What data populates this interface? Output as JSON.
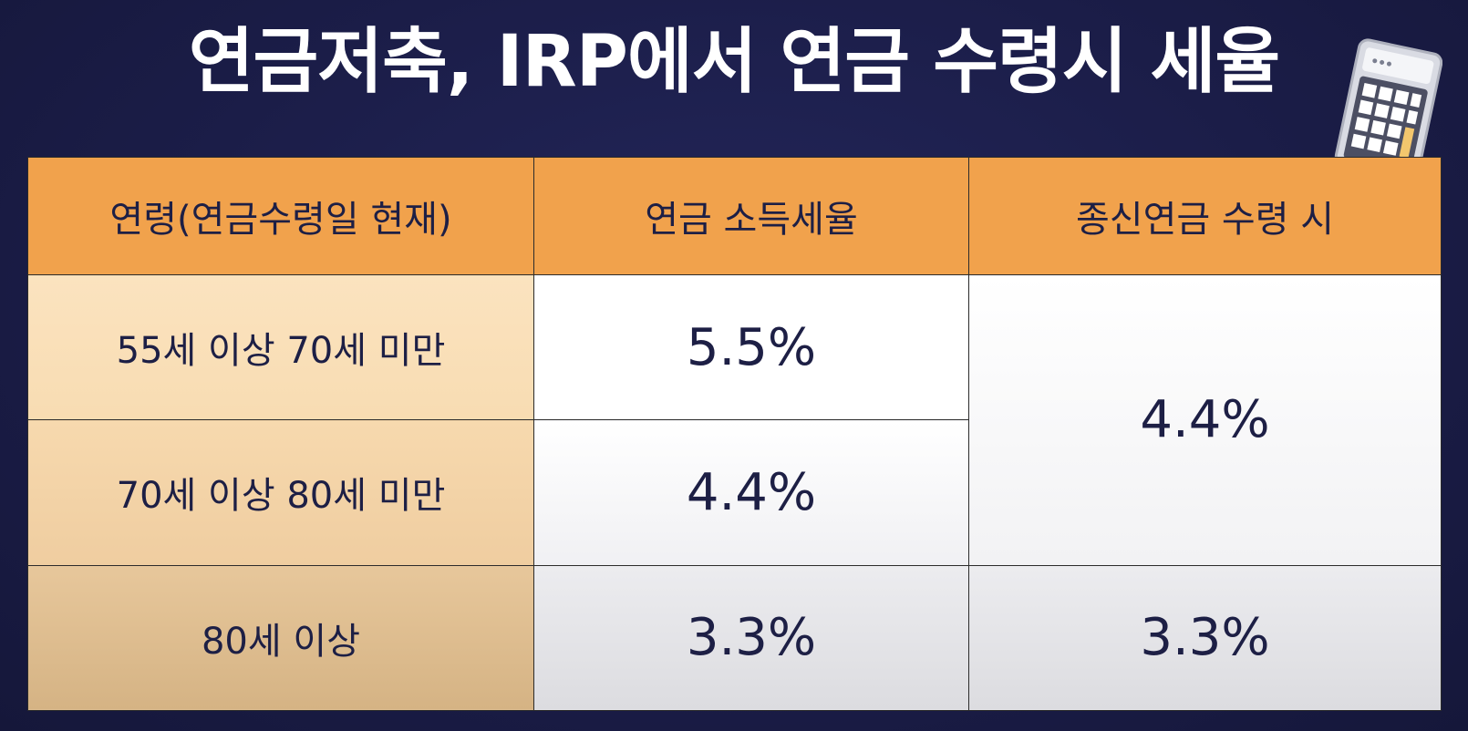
{
  "title": "연금저축, IRP에서 연금 수령시 세율",
  "table": {
    "headers": [
      "연령(연금수령일 현재)",
      "연금 소득세율",
      "종신연금 수령 시"
    ],
    "rows": [
      {
        "age": "55세 이상 70세 미만",
        "rate": "5.5%"
      },
      {
        "age": "70세 이상 80세 미만",
        "rate": "4.4%"
      },
      {
        "age": "80세 이상",
        "rate": "3.3%"
      }
    ],
    "annuity_rates": [
      "4.4%",
      "3.3%"
    ]
  },
  "icons": {
    "calculator": "calculator-icon"
  },
  "colors": {
    "background": "#1a1c45",
    "header": "#f1a24c",
    "age_column": "#f8dcb2",
    "text": "#1d1f45"
  }
}
